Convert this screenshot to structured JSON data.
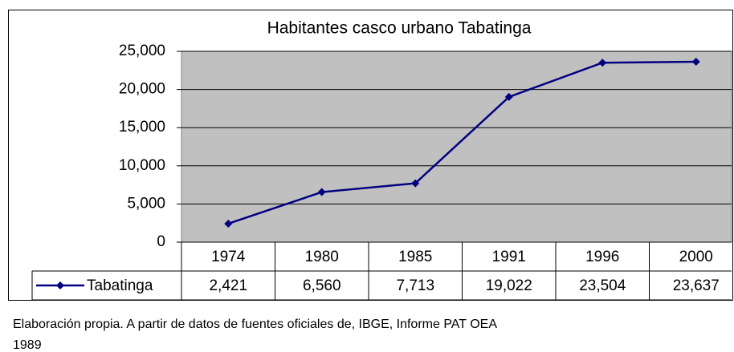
{
  "chart_data": {
    "type": "line",
    "title": "Habitantes casco urbano Tabatinga",
    "categories": [
      "1974",
      "1980",
      "1985",
      "1991",
      "1996",
      "2000"
    ],
    "series": [
      {
        "name": "Tabatinga",
        "color": "#000080",
        "values": [
          2421,
          6560,
          7713,
          19022,
          23504,
          23637
        ],
        "value_labels": [
          "2,421",
          "6,560",
          "7,713",
          "19,022",
          "23,504",
          "23,637"
        ]
      }
    ],
    "ylim": [
      0,
      25000
    ],
    "yticks": [
      0,
      {
        "value": 5000,
        "label": "5,000"
      },
      {
        "value": 10000,
        "label": "10,000"
      },
      {
        "value": 15000,
        "label": "15,000"
      },
      {
        "value": 20000,
        "label": "20,000"
      },
      {
        "value": 25000,
        "label": "25,000"
      }
    ],
    "grid": true,
    "plot_background": "#c0c0c0"
  },
  "note": [
    "Elaboración propia. A partir de datos de fuentes oficiales de, IBGE, Informe PAT OEA",
    "1989"
  ]
}
